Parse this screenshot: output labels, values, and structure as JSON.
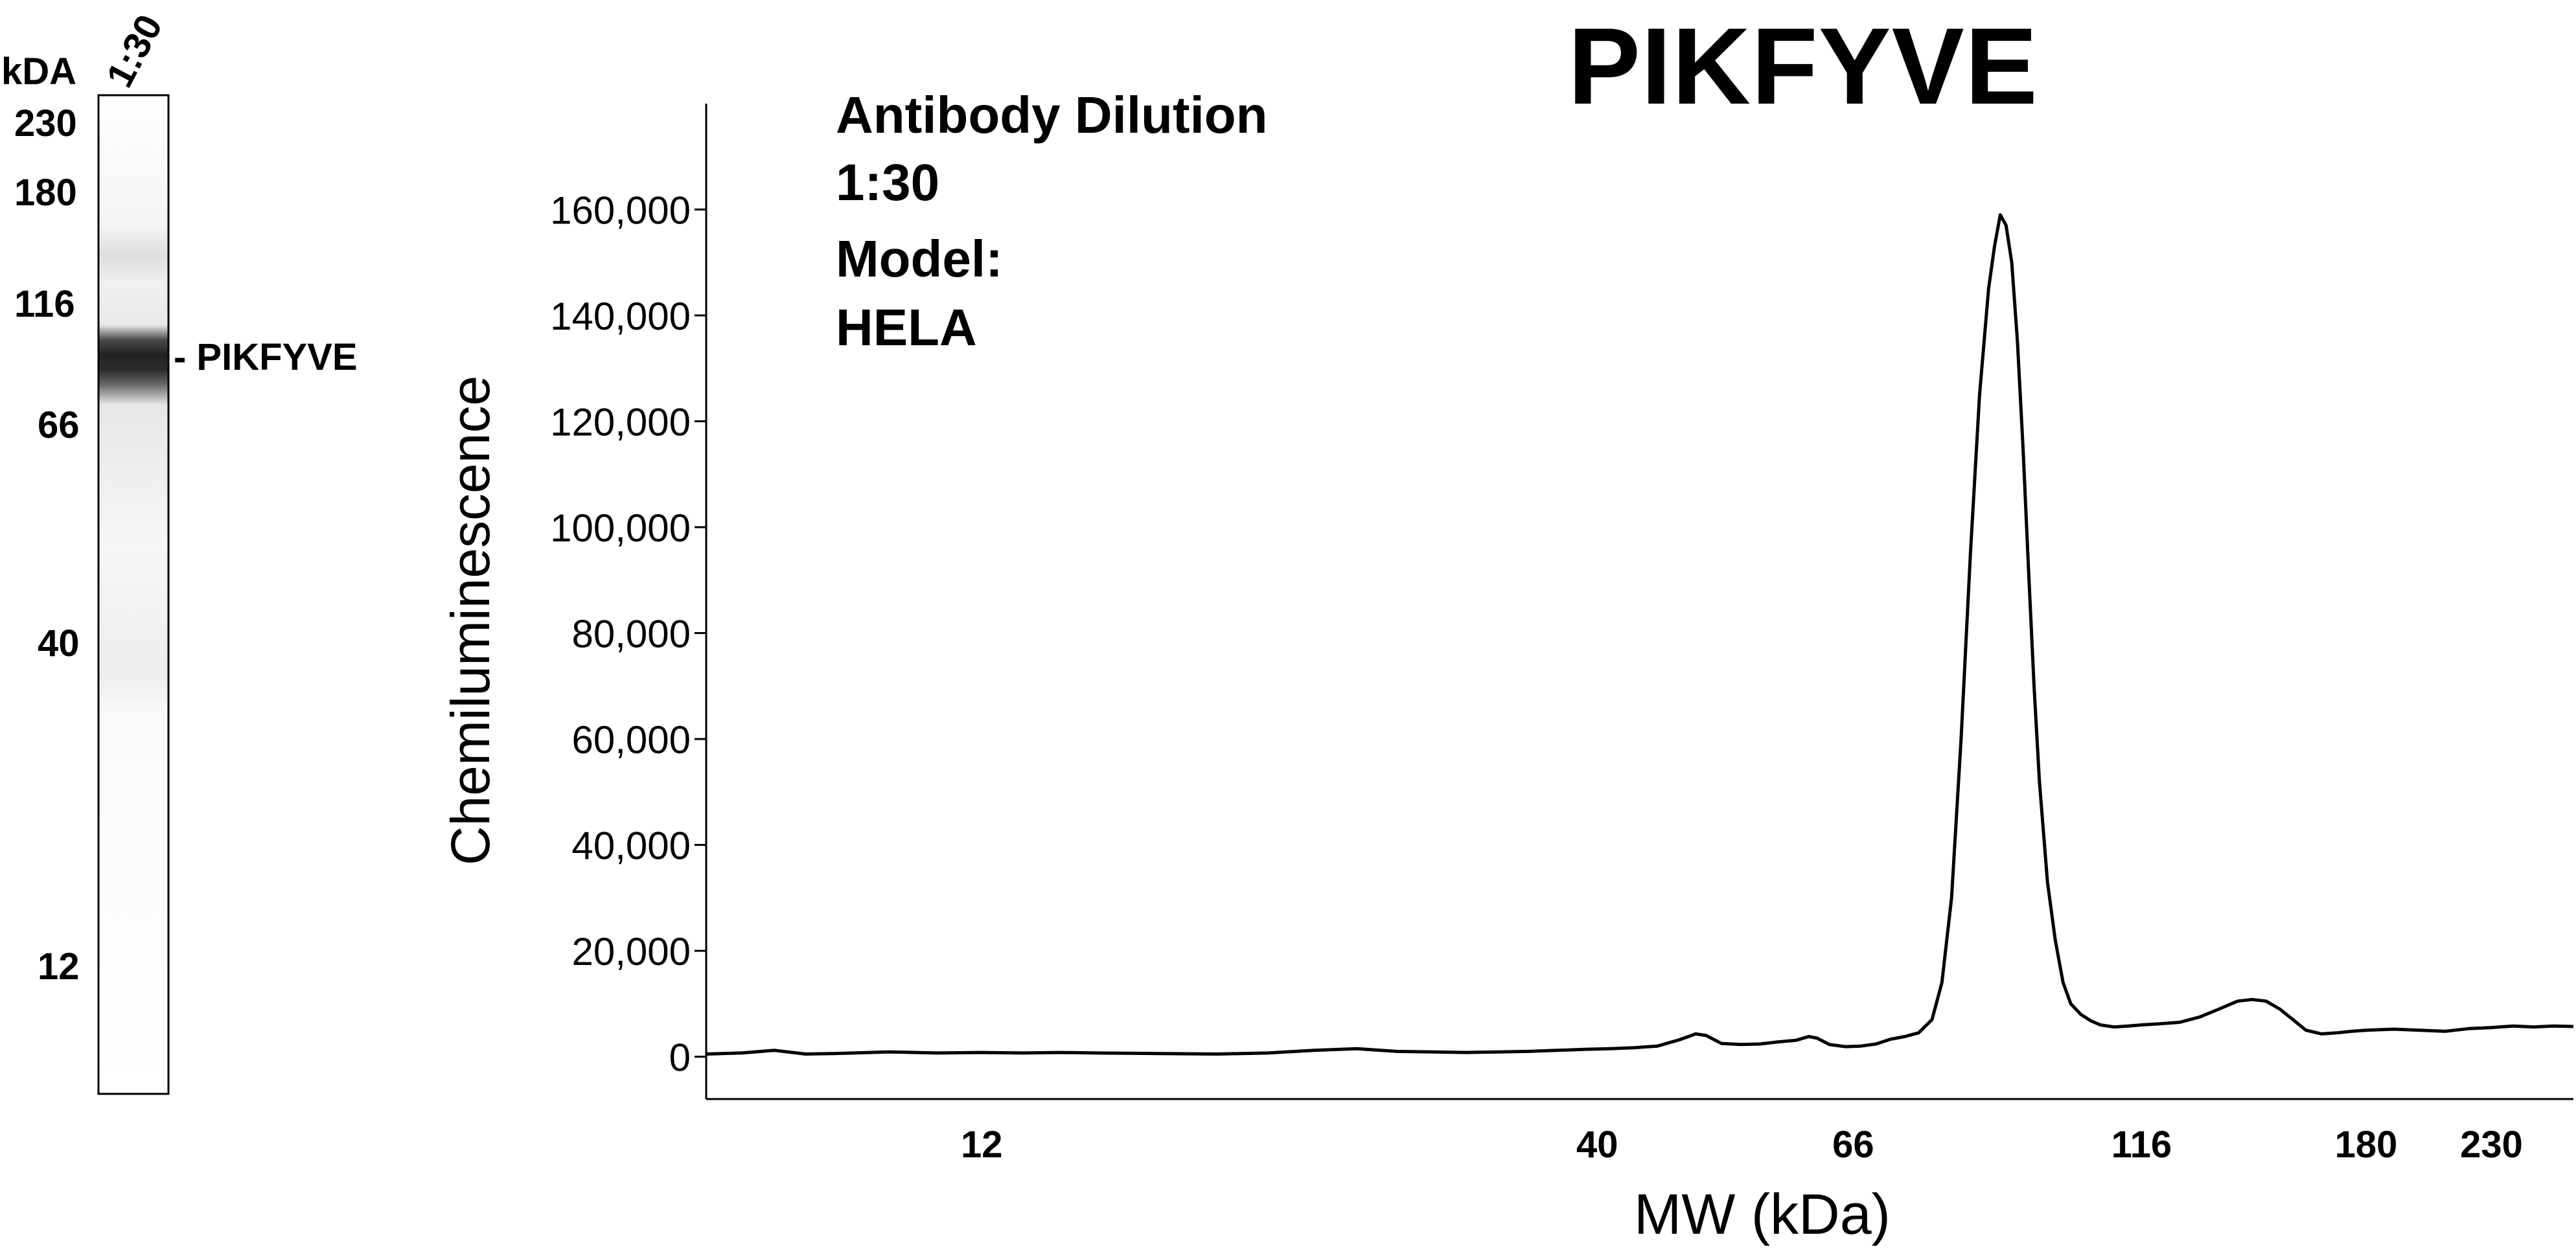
{
  "blot": {
    "unit_label": "kDA",
    "lane_label": "1:30",
    "markers": [
      "230",
      "180",
      "116",
      "66",
      "40",
      "12"
    ],
    "band_label": "- PIKFYVE"
  },
  "annotation": {
    "line1": "Antibody Dilution",
    "line2": "1:30",
    "line3": "Model:",
    "line4": "HELA"
  },
  "chart_data": {
    "type": "line",
    "title": "PIKFYVE",
    "xlabel": "MW (kDa)",
    "ylabel": "Chemiluminescence",
    "x_scale": "log",
    "x_ticks": [
      12,
      40,
      66,
      116,
      180,
      230
    ],
    "x_tick_labels": [
      "12",
      "40",
      "66",
      "116",
      "180",
      "230"
    ],
    "xlim": [
      7,
      270
    ],
    "y_ticks": [
      0,
      20000,
      40000,
      60000,
      80000,
      100000,
      120000,
      140000,
      160000
    ],
    "y_tick_labels": [
      "0",
      "20,000",
      "40,000",
      "60,000",
      "80,000",
      "100,000",
      "120,000",
      "140,000",
      "160,000"
    ],
    "ylim": [
      -8000,
      180000
    ],
    "grid": false,
    "series": [
      {
        "x": [
          7,
          7.5,
          8,
          8.5,
          9,
          10,
          11,
          12,
          13,
          14,
          15,
          17,
          19,
          21,
          23,
          25,
          27,
          29,
          31,
          33,
          35,
          37,
          39,
          41,
          43,
          45,
          47,
          48.5,
          49.5,
          51,
          53,
          55,
          57,
          59,
          60.5,
          61.5,
          63,
          65,
          67,
          69,
          71,
          73,
          75,
          77,
          78.5,
          80,
          81.5,
          83,
          84.5,
          86,
          87,
          88,
          89,
          90,
          91,
          92,
          93,
          94,
          95,
          96.5,
          98,
          99.5,
          101,
          103,
          105,
          107,
          110,
          113,
          116,
          120,
          125,
          130,
          135,
          140,
          144,
          148,
          152,
          156,
          160,
          165,
          170,
          175,
          180,
          190,
          200,
          210,
          220,
          230,
          240,
          250,
          260,
          270
        ],
        "y": [
          500,
          700,
          1200,
          500,
          600,
          900,
          700,
          800,
          700,
          800,
          700,
          600,
          500,
          700,
          1200,
          1500,
          1000,
          900,
          800,
          900,
          1000,
          1200,
          1400,
          1500,
          1700,
          2000,
          3200,
          4300,
          4000,
          2500,
          2300,
          2400,
          2800,
          3100,
          3800,
          3500,
          2300,
          1900,
          2000,
          2400,
          3300,
          3800,
          4500,
          7000,
          14000,
          30000,
          60000,
          95000,
          125000,
          145000,
          153000,
          159000,
          157000,
          150000,
          135000,
          115000,
          92000,
          70000,
          52000,
          33000,
          22000,
          14000,
          10000,
          8000,
          6800,
          6000,
          5600,
          5800,
          6000,
          6200,
          6500,
          7500,
          9000,
          10500,
          10800,
          10500,
          9000,
          7000,
          5000,
          4300,
          4500,
          4800,
          5000,
          5200,
          5000,
          4800,
          5300,
          5500,
          5800,
          5600,
          5800,
          5700
        ]
      }
    ]
  }
}
